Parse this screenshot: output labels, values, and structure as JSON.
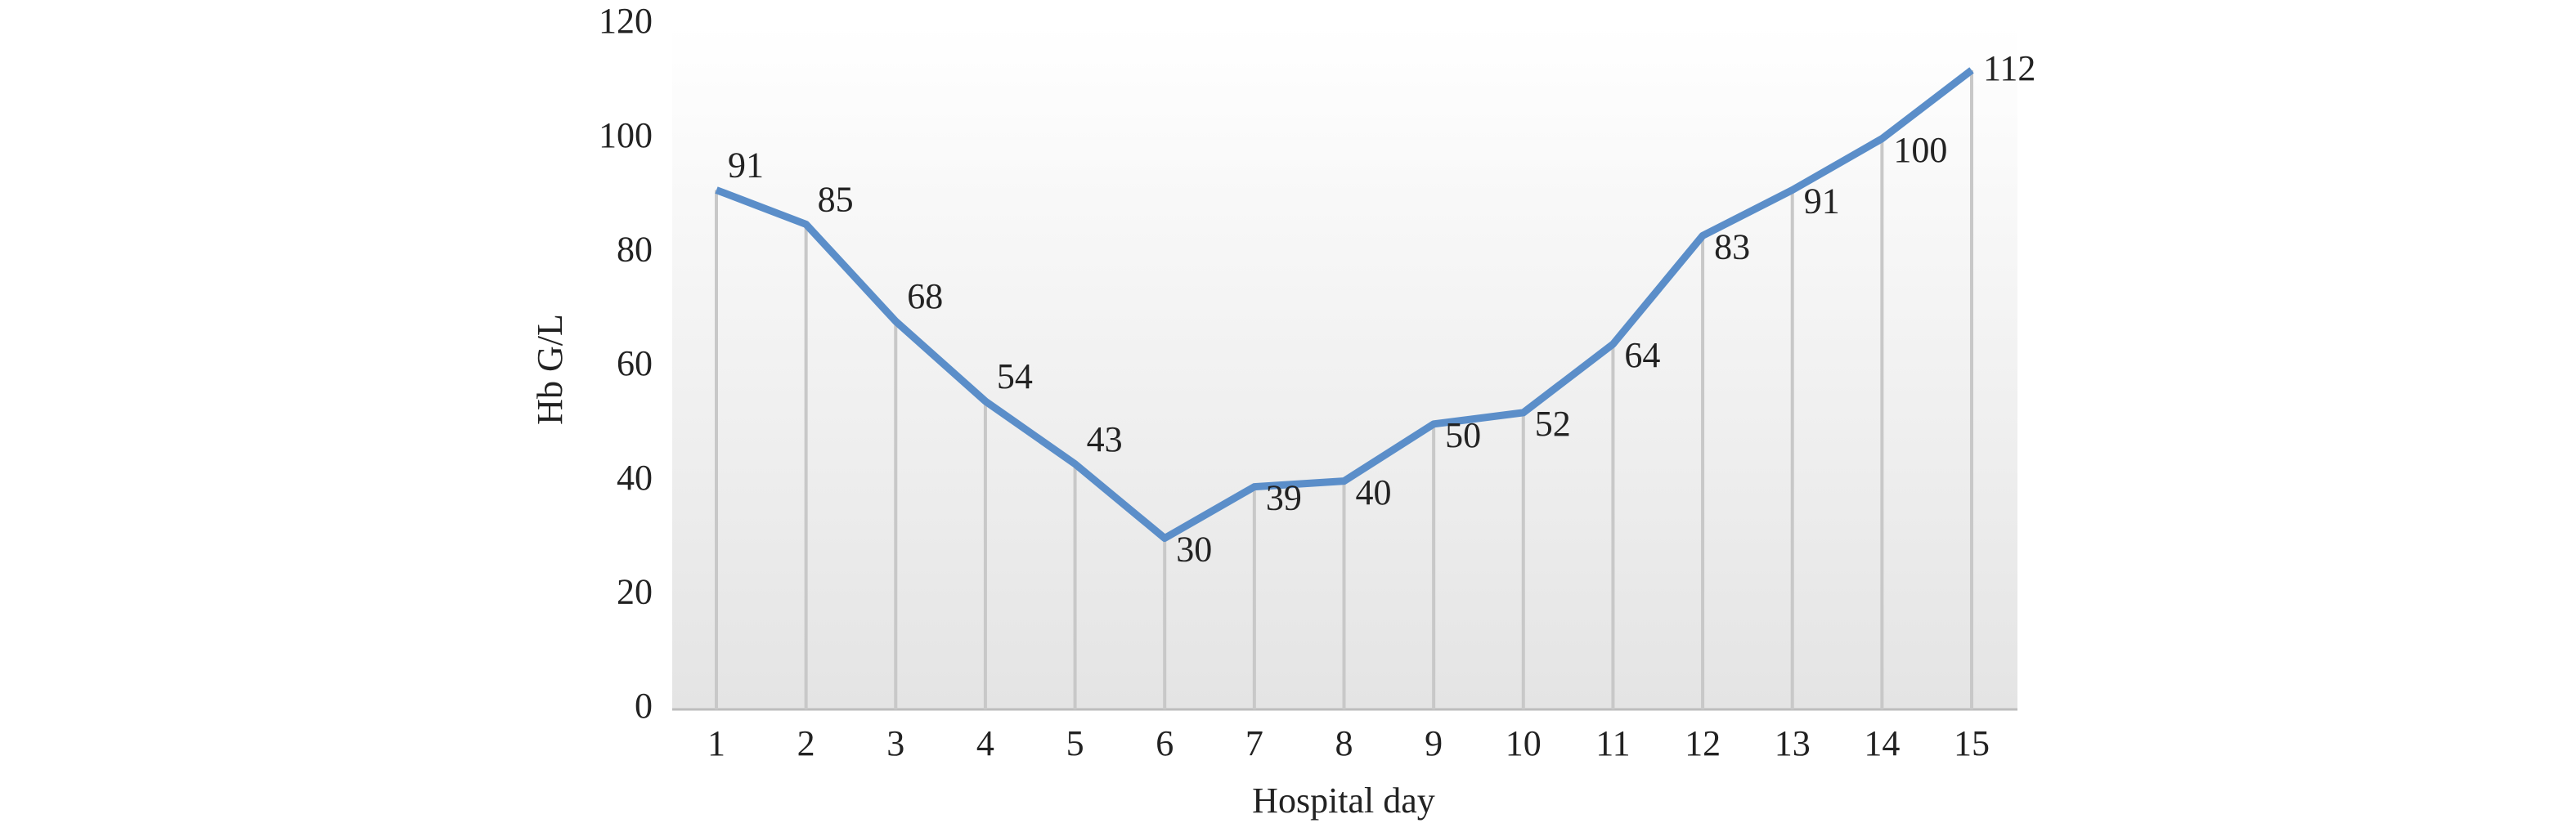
{
  "chart_data": {
    "type": "line",
    "x_label": "Hospital day",
    "y_label": "Hb G/L",
    "categories": [
      "1",
      "2",
      "3",
      "4",
      "5",
      "6",
      "7",
      "8",
      "9",
      "10",
      "11",
      "12",
      "13",
      "14",
      "15"
    ],
    "values": [
      91,
      85,
      68,
      54,
      43,
      30,
      39,
      40,
      50,
      52,
      64,
      83,
      91,
      100,
      112
    ],
    "color": "#5b8ec9",
    "drop_line_color": "#c8c8c8",
    "ylim": [
      0,
      120
    ],
    "yticks": [
      0,
      20,
      40,
      60,
      80,
      100,
      120
    ]
  }
}
